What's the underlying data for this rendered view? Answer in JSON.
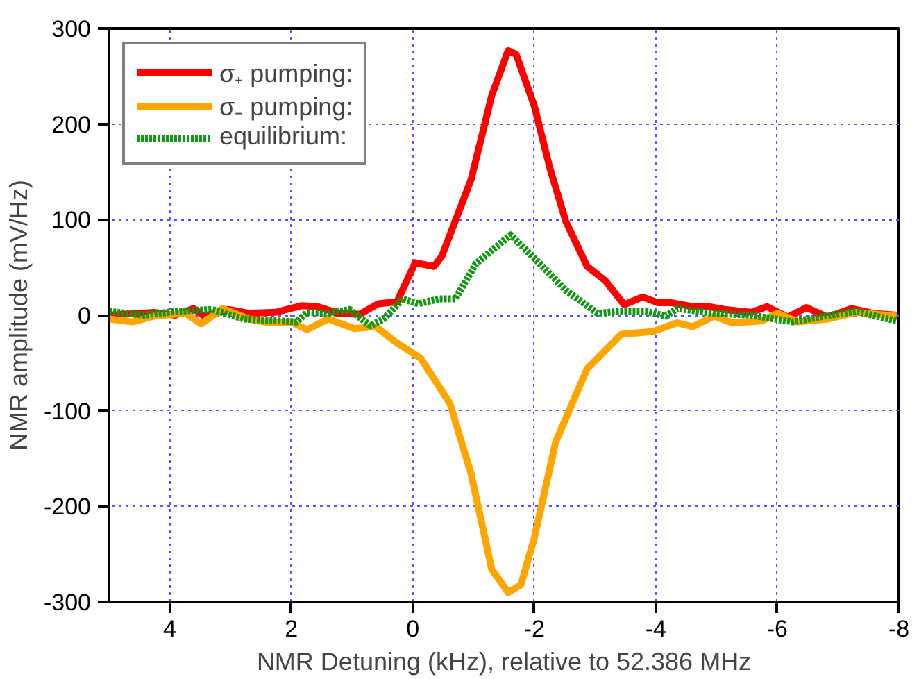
{
  "chart_data": {
    "type": "line",
    "xlabel": "NMR Detuning (kHz), relative to 52.386 MHz",
    "ylabel": "NMR amplitude (mV/Hz)",
    "xlim": [
      5,
      -8
    ],
    "xticks": [
      4,
      2,
      0,
      -2,
      -4,
      -6,
      -8
    ],
    "ylim": [
      -300,
      300
    ],
    "yticks": [
      -300,
      -200,
      -100,
      0,
      100,
      200,
      300
    ],
    "grid": true,
    "legend": "top left",
    "series": [
      {
        "name": "σ₊ pumping:",
        "color": "#ff0000",
        "line_style": "solid",
        "x": [
          5,
          4.26,
          3.91,
          3.61,
          3.43,
          3.04,
          2.7,
          2.26,
          1.83,
          1.57,
          1.22,
          0.87,
          0.57,
          0.26,
          -0.04,
          -0.35,
          -0.48,
          -0.96,
          -1.3,
          -1.57,
          -1.7,
          -2.0,
          -2.26,
          -2.52,
          -2.87,
          -3.17,
          -3.48,
          -3.78,
          -4.04,
          -4.26,
          -4.61,
          -4.87,
          -5.13,
          -5.57,
          -5.83,
          -6.17,
          -6.48,
          -6.83,
          -7.22,
          -7.57,
          -7.96
        ],
        "values": [
          0,
          3,
          0,
          7,
          -1,
          6,
          2,
          3,
          10,
          9,
          2,
          1,
          12,
          14,
          55,
          51,
          62,
          142,
          230,
          277,
          273,
          219,
          153,
          98,
          51,
          36,
          11,
          19,
          13,
          13,
          9,
          9,
          6,
          3,
          9,
          -2,
          8,
          -2,
          7,
          2,
          0
        ]
      },
      {
        "name": "σ₋ pumping:",
        "color": "#ffa500",
        "line_style": "solid",
        "x": [
          5,
          4.61,
          4.26,
          3.74,
          3.48,
          3.13,
          2.7,
          2.35,
          2.0,
          1.74,
          1.39,
          0.96,
          0.61,
          0.26,
          -0.13,
          -0.61,
          -0.96,
          -1.3,
          -1.57,
          -1.78,
          -2.0,
          -2.35,
          -2.87,
          -3.43,
          -3.96,
          -4.35,
          -4.61,
          -4.96,
          -5.26,
          -5.74,
          -6.0,
          -6.35,
          -6.83,
          -7.3,
          -7.96
        ],
        "values": [
          -4,
          -7,
          -1,
          2,
          -9,
          7,
          -4,
          -8,
          -7,
          -15,
          -4,
          -14,
          -12,
          -29,
          -45,
          -92,
          -166,
          -266,
          -290,
          -282,
          -233,
          -133,
          -56,
          -20,
          -17,
          -8,
          -12,
          -1,
          -8,
          -6,
          2,
          -7,
          -4,
          3,
          -1
        ]
      },
      {
        "name": "equilibrium:",
        "color": "#119911",
        "line_style": "dotted",
        "x": [
          5,
          4.43,
          3.91,
          3.3,
          2.78,
          1.91,
          1.74,
          1.39,
          1.04,
          0.7,
          0.48,
          0.17,
          -0.09,
          -0.43,
          -0.7,
          -1.04,
          -1.61,
          -2.09,
          -2.52,
          -3.04,
          -3.39,
          -3.83,
          -4.17,
          -4.35,
          -4.96,
          -5.57,
          -6.26,
          -6.87,
          -7.3,
          -7.96
        ],
        "values": [
          4,
          0,
          4,
          6,
          -4,
          -7,
          3,
          2,
          6,
          -11,
          -4,
          17,
          12,
          17,
          17,
          54,
          84,
          54,
          26,
          2,
          4,
          4,
          -1,
          7,
          2,
          0,
          -7,
          0,
          4,
          -6
        ]
      }
    ]
  }
}
